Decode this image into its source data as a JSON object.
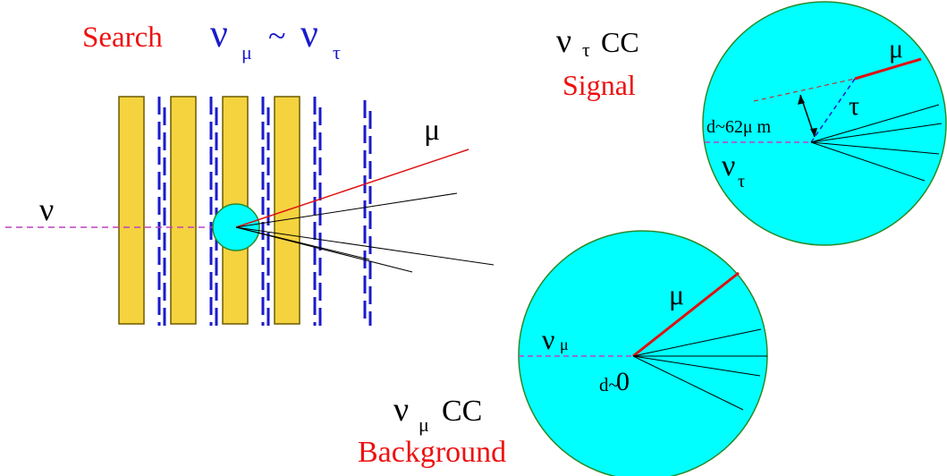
{
  "title": {
    "word": "Search",
    "nu_mu": "ν",
    "nu_mu_sub": "μ",
    "tilde": "~",
    "nu_tau": "ν",
    "nu_tau_sub": "τ"
  },
  "detector": {
    "neutrino_label": "ν",
    "muon_label": "μ"
  },
  "signal_panel": {
    "nu": "ν",
    "nu_sub": "τ",
    "cc": "CC",
    "kind": "Signal",
    "muon_label": "μ",
    "tau_label": "τ",
    "distance_label": "d~62μ m",
    "incoming_nu": "ν",
    "incoming_nu_sub": "τ"
  },
  "background_panel": {
    "nu": "ν",
    "nu_sub": "μ",
    "cc": "CC",
    "kind": "Background",
    "muon_label": "μ",
    "incoming_nu": "ν",
    "incoming_nu_sub": "μ",
    "distance_prefix": "d~",
    "distance_value": "0"
  },
  "colors": {
    "emulsion_fill": "#f5d33f",
    "emulsion_stroke": "#6b5a00",
    "tracker_blue": "#1a1acd",
    "vertex_cyan": "#00ffff",
    "vertex_stroke": "#2a8a2a",
    "muon_red": "#e01010",
    "neutrino_dash": "#c040c0",
    "signal_red": "#ee1111",
    "title_blue": "#1a1acd"
  }
}
